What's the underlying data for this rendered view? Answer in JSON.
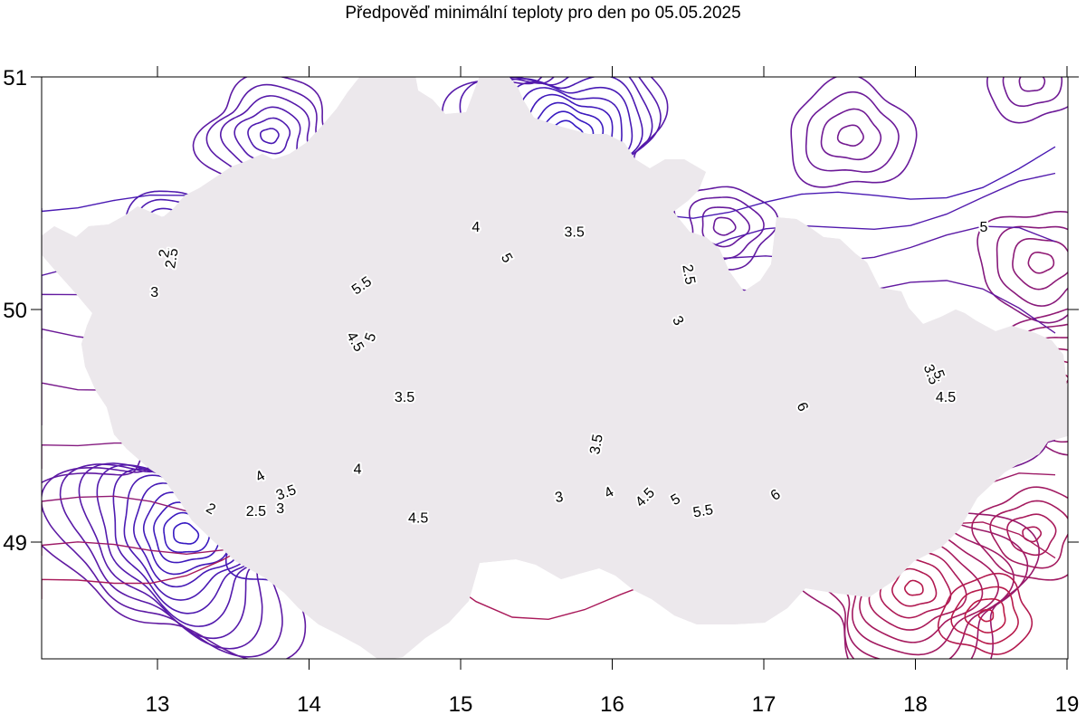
{
  "title": "Předpověď minimální teploty pro den po 05.05.2025",
  "map": {
    "x_ticks": [
      "13",
      "14",
      "15",
      "16",
      "17",
      "18",
      "19"
    ],
    "y_ticks": [
      "51",
      "50",
      "49"
    ],
    "colors": {
      "border": "#ee1111",
      "land": "#ece8ec",
      "region_lines": "#888888",
      "isoline_cold": "#2a1acc",
      "isoline_mid": "#6a1a9a",
      "isoline_warm": "#c81a3a"
    },
    "contour_labels": [
      {
        "text": "2.5",
        "lon": 13.1,
        "lat": 50.22,
        "rot": -80
      },
      {
        "text": "2",
        "lon": 13.05,
        "lat": 50.24,
        "rot": -80
      },
      {
        "text": "3",
        "lon": 12.98,
        "lat": 50.07,
        "rot": 0
      },
      {
        "text": "4",
        "lon": 15.1,
        "lat": 50.35,
        "rot": 0
      },
      {
        "text": "3.5",
        "lon": 15.75,
        "lat": 50.33,
        "rot": 0
      },
      {
        "text": "5.5",
        "lon": 14.35,
        "lat": 50.1,
        "rot": -35
      },
      {
        "text": "5",
        "lon": 15.3,
        "lat": 50.22,
        "rot": 60
      },
      {
        "text": "2.5",
        "lon": 16.5,
        "lat": 50.15,
        "rot": 80
      },
      {
        "text": "3",
        "lon": 16.43,
        "lat": 49.95,
        "rot": 60
      },
      {
        "text": "5",
        "lon": 18.45,
        "lat": 50.35,
        "rot": 0
      },
      {
        "text": "5",
        "lon": 14.41,
        "lat": 49.88,
        "rot": -70
      },
      {
        "text": "4.5",
        "lon": 14.3,
        "lat": 49.86,
        "rot": 60
      },
      {
        "text": "3.5",
        "lon": 14.63,
        "lat": 49.62,
        "rot": 0
      },
      {
        "text": "6",
        "lon": 17.25,
        "lat": 49.58,
        "rot": 65
      },
      {
        "text": "3.5",
        "lon": 15.9,
        "lat": 49.42,
        "rot": -80
      },
      {
        "text": "3.5",
        "lon": 18.1,
        "lat": 49.72,
        "rot": 70
      },
      {
        "text": "5",
        "lon": 18.15,
        "lat": 49.72,
        "rot": 70
      },
      {
        "text": "4.5",
        "lon": 18.2,
        "lat": 49.62,
        "rot": 0
      },
      {
        "text": "4",
        "lon": 13.68,
        "lat": 49.28,
        "rot": -30
      },
      {
        "text": "4",
        "lon": 14.32,
        "lat": 49.31,
        "rot": 0
      },
      {
        "text": "3.5",
        "lon": 13.85,
        "lat": 49.21,
        "rot": -20
      },
      {
        "text": "3",
        "lon": 13.81,
        "lat": 49.14,
        "rot": 0
      },
      {
        "text": "2",
        "lon": 13.35,
        "lat": 49.14,
        "rot": 30
      },
      {
        "text": "2.5",
        "lon": 13.65,
        "lat": 49.13,
        "rot": 0
      },
      {
        "text": "4.5",
        "lon": 14.72,
        "lat": 49.1,
        "rot": 0
      },
      {
        "text": "3",
        "lon": 15.65,
        "lat": 49.19,
        "rot": -10
      },
      {
        "text": "4",
        "lon": 15.98,
        "lat": 49.21,
        "rot": -30
      },
      {
        "text": "4.5",
        "lon": 16.22,
        "lat": 49.19,
        "rot": -45
      },
      {
        "text": "5",
        "lon": 16.42,
        "lat": 49.18,
        "rot": -30
      },
      {
        "text": "5.5",
        "lon": 16.6,
        "lat": 49.13,
        "rot": -10
      },
      {
        "text": "6",
        "lon": 17.08,
        "lat": 49.2,
        "rot": -35
      }
    ]
  }
}
